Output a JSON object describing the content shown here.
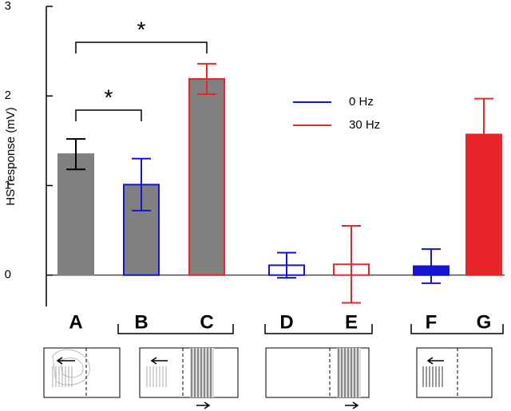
{
  "chart_data": {
    "type": "bar",
    "ylabel": "HS response (mV)",
    "categories": [
      "A",
      "B",
      "C",
      "D",
      "E",
      "F",
      "G"
    ],
    "values": [
      1.35,
      1.01,
      2.19,
      0.11,
      0.12,
      0.1,
      1.57
    ],
    "errors": [
      0.17,
      0.29,
      0.17,
      0.14,
      0.43,
      0.19,
      0.4
    ],
    "fill_colors": [
      "#808080",
      "#808080",
      "#808080",
      "#ffffff",
      "#ffffff",
      "#1414d2",
      "#e8262a"
    ],
    "edge_colors": [
      "#808080",
      "#1414d2",
      "#e8262a",
      "#1414d2",
      "#e8262a",
      "#1414d2",
      "#e8262a"
    ],
    "ylim": [
      -0.35,
      3
    ],
    "yticks": [
      0,
      1,
      2,
      3
    ],
    "legend": [
      {
        "name": "0 Hz",
        "color": "#1414d2"
      },
      {
        "name": "30 Hz",
        "color": "#e8262a"
      }
    ],
    "significance": [
      {
        "text": "*",
        "from": 0,
        "to": 2
      },
      {
        "text": "*",
        "from": 0,
        "to": 1
      }
    ]
  }
}
